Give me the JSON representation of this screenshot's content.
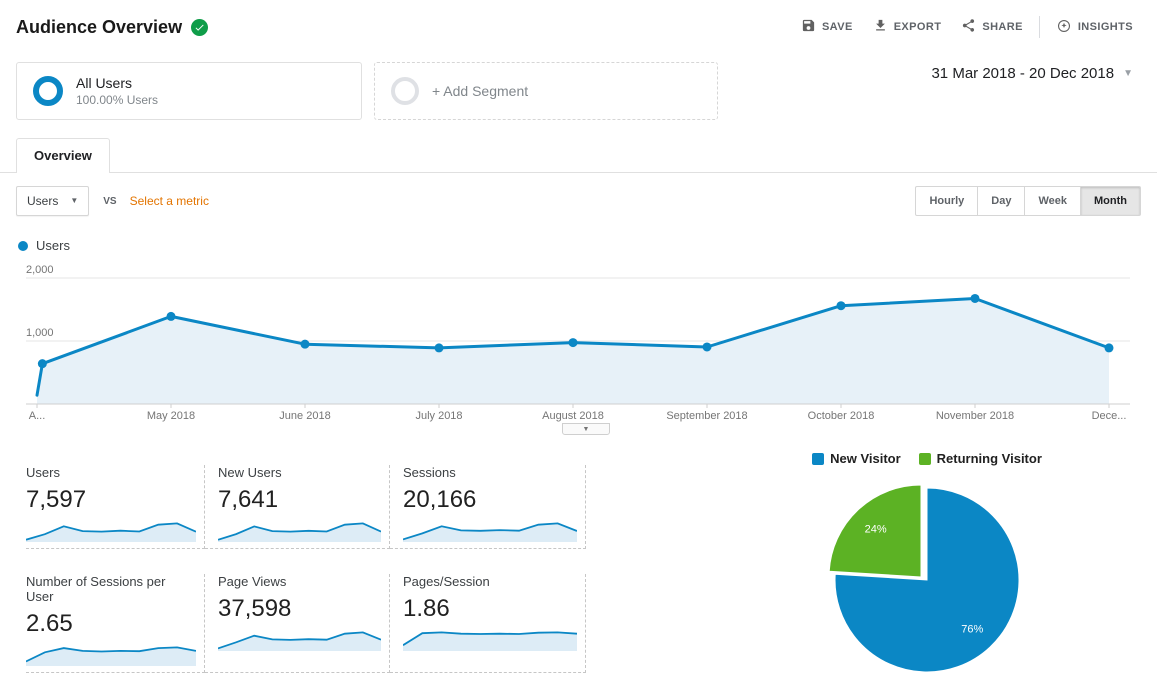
{
  "colors": {
    "accent_blue": "#0b87c5",
    "chart_fill": "#e7f1f8",
    "spark_fill": "#ddecf6",
    "pie_green": "#5cb224",
    "link_orange": "#e37400",
    "badge_green": "#0f9d49"
  },
  "header": {
    "title": "Audience Overview",
    "actions": {
      "save": "SAVE",
      "export": "EXPORT",
      "share": "SHARE",
      "insights": "INSIGHTS"
    }
  },
  "segments": {
    "all_users_title": "All Users",
    "all_users_subtitle": "100.00% Users",
    "add_segment_label": "+ Add Segment",
    "date_range": "31 Mar 2018 - 20 Dec 2018"
  },
  "tabs": {
    "overview": "Overview"
  },
  "controls": {
    "metric_dropdown": "Users",
    "vs_label": "VS",
    "select_metric_label": "Select a metric",
    "granularity": [
      {
        "label": "Hourly",
        "selected": false
      },
      {
        "label": "Day",
        "selected": false
      },
      {
        "label": "Week",
        "selected": false
      },
      {
        "label": "Month",
        "selected": true
      }
    ]
  },
  "legend": {
    "users": "Users"
  },
  "chart_data": [
    {
      "type": "area",
      "title": "Users",
      "ylim": [
        0,
        2000
      ],
      "grid": true,
      "yticks": [
        {
          "value": 1000,
          "label": "1,000"
        },
        {
          "value": 2000,
          "label": "2,000"
        }
      ],
      "xticks": [
        {
          "label": "A...",
          "x": 0
        },
        {
          "label": "May 2018",
          "x": 1
        },
        {
          "label": "June 2018",
          "x": 2
        },
        {
          "label": "July 2018",
          "x": 3
        },
        {
          "label": "August 2018",
          "x": 4
        },
        {
          "label": "September 2018",
          "x": 5
        },
        {
          "label": "October 2018",
          "x": 6
        },
        {
          "label": "November 2018",
          "x": 7
        },
        {
          "label": "Dece...",
          "x": 8
        }
      ],
      "points": [
        {
          "x": 0,
          "v": 140,
          "dot": false
        },
        {
          "x": 0.04,
          "v": 640,
          "dot": true
        },
        {
          "x": 1,
          "v": 1390,
          "dot": true
        },
        {
          "x": 2,
          "v": 950,
          "dot": true
        },
        {
          "x": 3,
          "v": 890,
          "dot": true
        },
        {
          "x": 4,
          "v": 975,
          "dot": true
        },
        {
          "x": 5,
          "v": 905,
          "dot": true
        },
        {
          "x": 6,
          "v": 1560,
          "dot": true
        },
        {
          "x": 7,
          "v": 1675,
          "dot": true
        },
        {
          "x": 8,
          "v": 890,
          "dot": true
        }
      ]
    },
    {
      "type": "pie",
      "legend_position": "top",
      "slices": [
        {
          "label": "New Visitor",
          "value": 76,
          "display": "76%",
          "color": "#0b87c5",
          "offset": [
            0,
            0
          ]
        },
        {
          "label": "Returning Visitor",
          "value": 24,
          "display": "24%",
          "color": "#5cb224",
          "offset": [
            -6,
            -3
          ]
        }
      ]
    }
  ],
  "metrics": [
    {
      "label": "Users",
      "value": "7,597",
      "spark": [
        1.2,
        6.5,
        14,
        9.5,
        9,
        9.8,
        9.1,
        15.6,
        16.8,
        8.9
      ]
    },
    {
      "label": "New Users",
      "value": "7,641",
      "spark": [
        1.2,
        6.6,
        14,
        9.5,
        9,
        9.8,
        9.1,
        15.7,
        16.9,
        9
      ]
    },
    {
      "label": "Sessions",
      "value": "20,166",
      "spark": [
        1.5,
        7,
        13.5,
        9.8,
        9.4,
        10,
        9.5,
        15,
        16.2,
        9.2
      ]
    },
    {
      "label": "Number of Sessions per User",
      "value": "2.65",
      "spark": [
        2.5,
        9,
        12,
        10,
        9.6,
        10,
        9.8,
        12,
        12.5,
        10
      ]
    },
    {
      "label": "Page Views",
      "value": "37,598",
      "spark": [
        1.5,
        7,
        13,
        9.6,
        9.2,
        9.8,
        9.4,
        14.8,
        16,
        9.4
      ]
    },
    {
      "label": "Pages/Session",
      "value": "1.86",
      "spark": [
        3,
        10.5,
        11,
        10.2,
        10,
        10.2,
        10,
        10.8,
        11,
        10.2
      ]
    }
  ]
}
